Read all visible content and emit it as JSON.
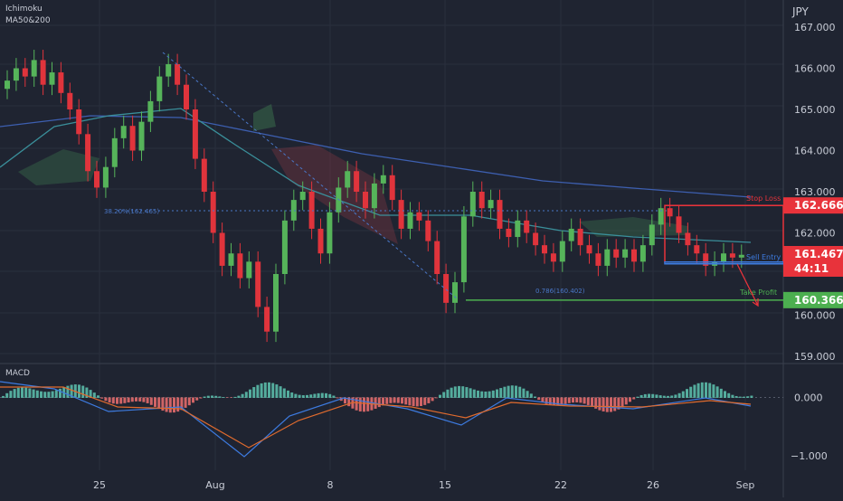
{
  "header": {
    "indicator1": "Ichimoku",
    "indicator2": "MA50&200",
    "currency": "JPY"
  },
  "colors": {
    "bg": "#1f2431",
    "grid": "#2a2f3d",
    "up": "#56b45a",
    "down": "#e0343c",
    "ma50": "#3a8f9a",
    "ma200": "#3d5fb0",
    "cloud_up": "#3f7d52",
    "cloud_down": "#8a3a44",
    "stop": "#e8333b",
    "take": "#4caf50",
    "entry": "#3d7be0",
    "fib": "#4a78c8",
    "macd": "#3d7be0",
    "signal": "#e06b2e"
  },
  "chart_data": {
    "type": "candlestick",
    "price_axis": {
      "min": 159.0,
      "max": 167.0,
      "ticks": [
        "167.000",
        "166.000",
        "165.000",
        "164.000",
        "163.000",
        "162.000",
        "160.000",
        "159.000"
      ]
    },
    "x_labels": [
      {
        "label": "25",
        "i": 11
      },
      {
        "label": "Aug",
        "i": 23
      },
      {
        "label": "8",
        "i": 36
      },
      {
        "label": "15",
        "i": 49
      },
      {
        "label": "22",
        "i": 62
      },
      {
        "label": "26",
        "i": 72
      },
      {
        "label": "Sep",
        "i": 82
      }
    ],
    "levels": {
      "stop_loss": {
        "label": "Stop Loss",
        "value": "162.666",
        "v": 162.666
      },
      "sell_entry": {
        "label": "Sell Entry",
        "value": "161.467",
        "v": 161.467,
        "countdown": "44:11"
      },
      "take_profit": {
        "label": "Take Profit",
        "value": "160.366",
        "v": 160.366
      },
      "fib_382": {
        "label": "38.20%(162.465)",
        "v": 162.465
      },
      "fib_786": {
        "label": "0.786(160.402)",
        "v": 160.402
      }
    },
    "macd": {
      "label": "MACD",
      "ticks": [
        "0.000",
        "−1.000"
      ],
      "min": -1.25,
      "max": 0.55
    },
    "closes": [
      165.7,
      166.0,
      165.8,
      166.2,
      165.6,
      165.9,
      165.4,
      165.0,
      164.4,
      163.5,
      163.1,
      163.6,
      164.3,
      164.6,
      164.0,
      164.7,
      165.2,
      165.8,
      166.1,
      165.6,
      165.0,
      163.8,
      163.0,
      162.0,
      161.2,
      161.5,
      160.9,
      161.3,
      160.2,
      159.6,
      161.0,
      162.3,
      162.8,
      163.0,
      162.1,
      161.5,
      162.5,
      163.1,
      163.5,
      163.0,
      162.6,
      163.2,
      163.4,
      162.8,
      162.1,
      162.5,
      162.3,
      161.8,
      161.0,
      160.3,
      160.8,
      162.4,
      163.0,
      162.6,
      162.8,
      162.1,
      161.9,
      162.3,
      162.0,
      161.7,
      161.5,
      161.3,
      161.8,
      162.1,
      161.7,
      161.5,
      161.2,
      161.6,
      161.4,
      161.6,
      161.3,
      161.7,
      162.2,
      162.6,
      162.4,
      162.0,
      161.7,
      161.5,
      161.2,
      161.3,
      161.5,
      161.4,
      161.467
    ]
  }
}
